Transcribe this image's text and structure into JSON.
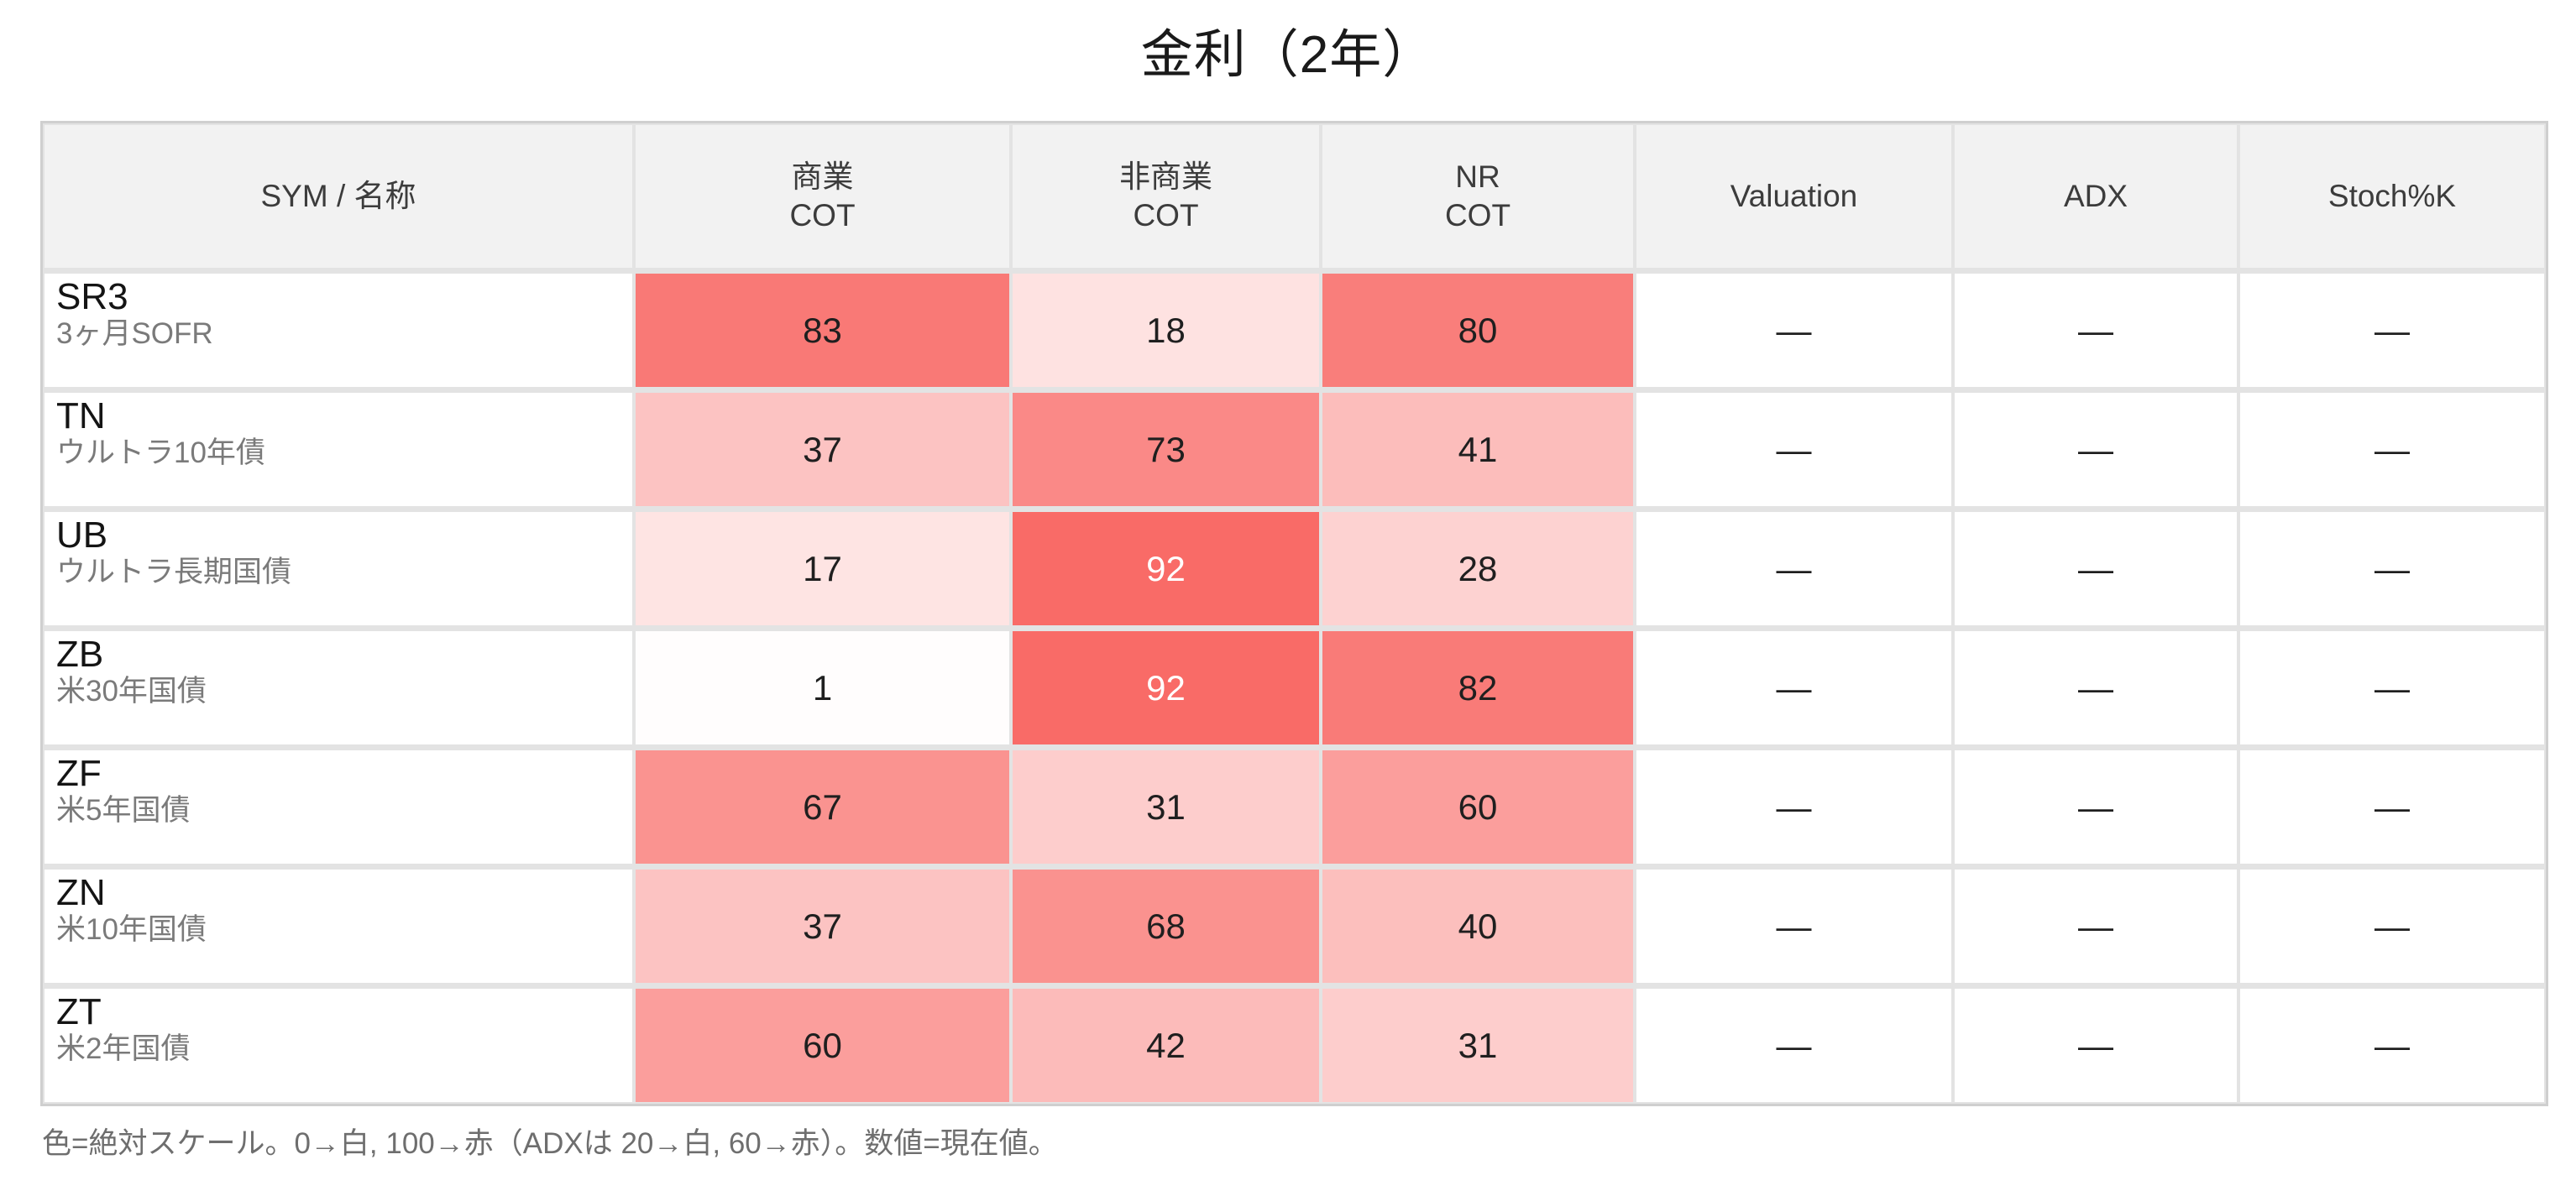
{
  "title": "金利（2年）",
  "table": {
    "columns": [
      {
        "label": "SYM / 名称"
      },
      {
        "label": "商業\nCOT"
      },
      {
        "label": "非商業\nCOT"
      },
      {
        "label": "NR\nCOT"
      },
      {
        "label": "Valuation"
      },
      {
        "label": "ADX"
      },
      {
        "label": "Stoch%K"
      }
    ],
    "rows": [
      {
        "sym": "SR3",
        "name": "3ヶ月SOFR",
        "commercial_cot": 83,
        "noncommercial_cot": 18,
        "nr_cot": 80,
        "valuation": "—",
        "adx": "—",
        "stoch_k": "—"
      },
      {
        "sym": "TN",
        "name": "ウルトラ10年債",
        "commercial_cot": 37,
        "noncommercial_cot": 73,
        "nr_cot": 41,
        "valuation": "—",
        "adx": "—",
        "stoch_k": "—"
      },
      {
        "sym": "UB",
        "name": "ウルトラ長期国債",
        "commercial_cot": 17,
        "noncommercial_cot": 92,
        "nr_cot": 28,
        "valuation": "—",
        "adx": "—",
        "stoch_k": "—"
      },
      {
        "sym": "ZB",
        "name": "米30年国債",
        "commercial_cot": 1,
        "noncommercial_cot": 92,
        "nr_cot": 82,
        "valuation": "—",
        "adx": "—",
        "stoch_k": "—"
      },
      {
        "sym": "ZF",
        "name": "米5年国債",
        "commercial_cot": 67,
        "noncommercial_cot": 31,
        "nr_cot": 60,
        "valuation": "—",
        "adx": "—",
        "stoch_k": "—"
      },
      {
        "sym": "ZN",
        "name": "米10年国債",
        "commercial_cot": 37,
        "noncommercial_cot": 68,
        "nr_cot": 40,
        "valuation": "—",
        "adx": "—",
        "stoch_k": "—"
      },
      {
        "sym": "ZT",
        "name": "米2年国債",
        "commercial_cot": 60,
        "noncommercial_cot": 42,
        "nr_cot": 31,
        "valuation": "—",
        "adx": "—",
        "stoch_k": "—"
      }
    ]
  },
  "footnote": "色=絶対スケール。0→白, 100→赤（ADXは 20→白, 60→赤）。数値=現在値。",
  "colors": {
    "heat_min": "#FFFFFF",
    "heat_max": "#F85E5A",
    "header_bg": "#F2F2F2",
    "grid_line": "#E3E3E3",
    "outer_border": "#CFCFCF",
    "value_text_dark": "#1F1F1F",
    "value_text_light": "#FFFFFF",
    "white_text_threshold": 90
  },
  "chart_data": {
    "type": "heatmap",
    "title": "金利（2年）",
    "columns": [
      "商業 COT",
      "非商業 COT",
      "NR COT",
      "Valuation",
      "ADX",
      "Stoch%K"
    ],
    "row_labels": [
      "SR3 3ヶ月SOFR",
      "TN ウルトラ10年債",
      "UB ウルトラ長期国債",
      "ZB 米30年国債",
      "ZF 米5年国債",
      "ZN 米10年国債",
      "ZT 米2年国債"
    ],
    "values": [
      [
        83,
        18,
        80,
        null,
        null,
        null
      ],
      [
        37,
        73,
        41,
        null,
        null,
        null
      ],
      [
        17,
        92,
        28,
        null,
        null,
        null
      ],
      [
        1,
        92,
        82,
        null,
        null,
        null
      ],
      [
        67,
        31,
        60,
        null,
        null,
        null
      ],
      [
        37,
        68,
        40,
        null,
        null,
        null
      ],
      [
        60,
        42,
        31,
        null,
        null,
        null
      ]
    ],
    "null_display": "—",
    "color_scale": "absolute: 0→white, 100→red #F85E5A (ADX: 20→white, 60→red)",
    "legend_position": "footnote below table"
  }
}
